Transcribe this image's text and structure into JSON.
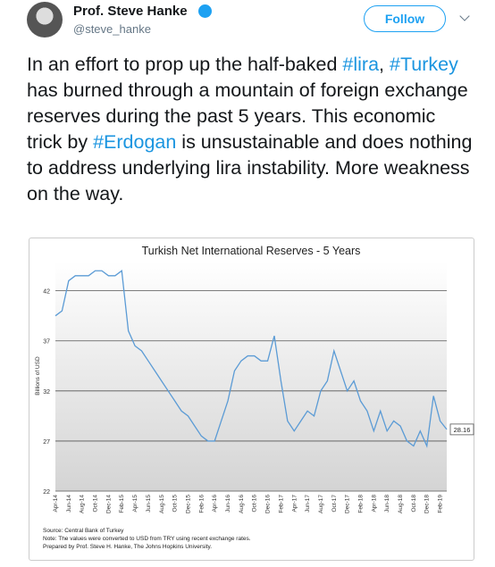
{
  "tweet": {
    "name": "Prof. Steve Hanke",
    "handle": "@steve_hanke",
    "follow": "Follow",
    "text_parts": [
      {
        "text": "In an effort to prop up the half-baked ",
        "hashtag": false
      },
      {
        "text": "#lira",
        "hashtag": true
      },
      {
        "text": ", ",
        "hashtag": false
      },
      {
        "text": "#Turkey",
        "hashtag": true
      },
      {
        "text": " has burned through a mountain of foreign exchange reserves during the past 5 years. This economic trick by ",
        "hashtag": false
      },
      {
        "text": "#Erdogan",
        "hashtag": true
      },
      {
        "text": " is unsustainable and does nothing to address underlying lira instability. More weakness on the way.",
        "hashtag": false
      }
    ]
  },
  "chart_data": {
    "type": "line",
    "title": "Turkish Net International Reserves - 5 Years",
    "y_label": "Billions of USD",
    "categories": [
      "Apr-14",
      null,
      "Jun-14",
      null,
      "Aug-14",
      null,
      "Oct-14",
      null,
      "Dec-14",
      null,
      "Feb-15",
      null,
      "Apr-15",
      null,
      "Jun-15",
      null,
      "Aug-15",
      null,
      "Oct-15",
      null,
      "Dec-15",
      null,
      "Feb-16",
      null,
      "Apr-16",
      null,
      "Jun-16",
      null,
      "Aug-16",
      null,
      "Oct-16",
      null,
      "Dec-16",
      null,
      "Feb-17",
      null,
      "Apr-17",
      null,
      "Jun-17",
      null,
      "Aug-17",
      null,
      "Oct-17",
      null,
      "Dec-17",
      null,
      "Feb-18",
      null,
      "Apr-18",
      null,
      "Jun-18",
      null,
      "Aug-18",
      null,
      "Oct-18",
      null,
      "Dec-18",
      null,
      "Feb-19",
      null
    ],
    "values": [
      39.5,
      40,
      43,
      43.5,
      43.5,
      43.5,
      44,
      44,
      43.5,
      43.5,
      44,
      38,
      36.5,
      36,
      35,
      34,
      33,
      32,
      31,
      30,
      29.5,
      28.5,
      27.5,
      27,
      27,
      29,
      31,
      34,
      35,
      35.5,
      35.5,
      35,
      35,
      37.5,
      33,
      29,
      28,
      29,
      30,
      29.5,
      32,
      33,
      36,
      34,
      32,
      33,
      31,
      30,
      28,
      30,
      28,
      29,
      28.5,
      27,
      26.5,
      28,
      26.5,
      31.5,
      29,
      28.16
    ],
    "color": "#5b9bd5",
    "ylim": [
      22,
      45
    ],
    "yticks": [
      22,
      27,
      32,
      37,
      42
    ],
    "grid": true,
    "notes": [
      "Source: Central Bank of Turkey",
      "Note: The values were converted to USD from TRY using recent exchange rates.",
      "Prepared by Prof. Steve H. Hanke, The Johns Hopkins University."
    ]
  }
}
